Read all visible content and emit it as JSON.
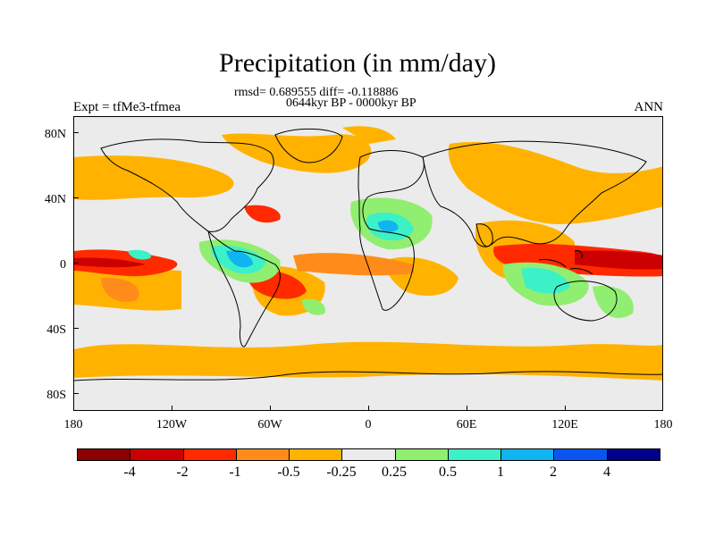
{
  "title": "Precipitation (in mm/day)",
  "subtitle_stats": "rmsd= 0.689555 diff= -0.118886",
  "subtitle_period": "0644kyr BP - 0000kyr BP",
  "experiment": "Expt = tfMe3-tfmea",
  "season": "ANN",
  "lat_labels": [
    "80N",
    "40N",
    "0",
    "40S",
    "80S"
  ],
  "lon_labels": [
    "180",
    "120W",
    "60W",
    "0",
    "60E",
    "120E",
    "180"
  ],
  "colorbar": {
    "labels": [
      "-4",
      "-2",
      "-1",
      "-0.5",
      "-0.25",
      "0.25",
      "0.5",
      "1",
      "2",
      "4"
    ],
    "colors": [
      "#8b0000",
      "#cc0000",
      "#ff2a00",
      "#ff8c1a",
      "#ffb300",
      "#ebebeb",
      "#90ee70",
      "#3cf0c8",
      "#10b4f0",
      "#0a55f0",
      "#00008b"
    ]
  },
  "map_colors": {
    "background": "#ebebeb",
    "coast": "#000000"
  }
}
